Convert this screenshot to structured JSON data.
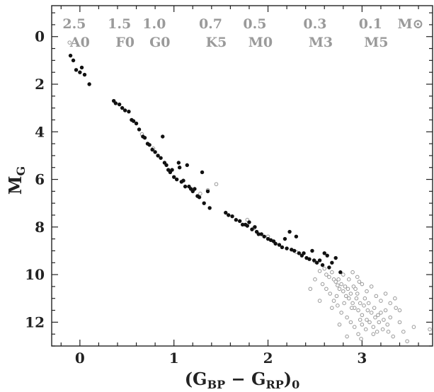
{
  "chart_data": {
    "type": "scatter",
    "xlabel": "(G_BP − G_RP)_0",
    "ylabel": "M_G",
    "xlim": [
      -0.3,
      3.75
    ],
    "ylim": [
      13.0,
      -1.3
    ],
    "x_ticks": [
      0,
      1,
      2,
      3
    ],
    "y_ticks": [
      0,
      2,
      4,
      6,
      8,
      10,
      12
    ],
    "grid": false,
    "mass_scale": {
      "unit": "M⊙",
      "markers": [
        {
          "x": -0.06,
          "mass": "2.5",
          "sptype": "A0"
        },
        {
          "x": 0.42,
          "mass": "1.5",
          "sptype": "F0"
        },
        {
          "x": 0.79,
          "mass": "1.0",
          "sptype": "G0"
        },
        {
          "x": 1.39,
          "mass": "0.7",
          "sptype": "K5"
        },
        {
          "x": 1.86,
          "mass": "0.5",
          "sptype": "M0"
        },
        {
          "x": 2.5,
          "mass": "0.3",
          "sptype": "M3"
        },
        {
          "x": 3.09,
          "mass": "0.1",
          "sptype": "M5"
        }
      ]
    },
    "series": [
      {
        "marker": "filled",
        "color": "#111111",
        "points": [
          [
            -0.1,
            0.8
          ],
          [
            -0.07,
            1.0
          ],
          [
            -0.04,
            1.4
          ],
          [
            0.0,
            1.5
          ],
          [
            0.02,
            1.3
          ],
          [
            0.05,
            1.6
          ],
          [
            0.1,
            2.0
          ],
          [
            0.36,
            2.7
          ],
          [
            0.38,
            2.8
          ],
          [
            0.42,
            2.85
          ],
          [
            0.45,
            3.0
          ],
          [
            0.48,
            3.1
          ],
          [
            0.52,
            3.15
          ],
          [
            0.55,
            3.5
          ],
          [
            0.57,
            3.55
          ],
          [
            0.6,
            3.65
          ],
          [
            0.63,
            3.9
          ],
          [
            0.67,
            4.2
          ],
          [
            0.69,
            4.25
          ],
          [
            0.72,
            4.5
          ],
          [
            0.74,
            4.55
          ],
          [
            0.77,
            4.75
          ],
          [
            0.8,
            4.85
          ],
          [
            0.83,
            5.0
          ],
          [
            0.86,
            5.1
          ],
          [
            0.88,
            4.2
          ],
          [
            0.9,
            5.3
          ],
          [
            0.92,
            5.4
          ],
          [
            0.94,
            5.6
          ],
          [
            0.96,
            5.7
          ],
          [
            0.98,
            5.6
          ],
          [
            1.0,
            5.9
          ],
          [
            1.03,
            6.0
          ],
          [
            1.05,
            5.3
          ],
          [
            1.06,
            5.5
          ],
          [
            1.08,
            6.1
          ],
          [
            1.1,
            6.05
          ],
          [
            1.12,
            6.3
          ],
          [
            1.14,
            5.4
          ],
          [
            1.16,
            6.3
          ],
          [
            1.18,
            6.4
          ],
          [
            1.2,
            6.5
          ],
          [
            1.22,
            6.4
          ],
          [
            1.25,
            6.7
          ],
          [
            1.27,
            6.75
          ],
          [
            1.3,
            5.7
          ],
          [
            1.32,
            7.0
          ],
          [
            1.36,
            6.5
          ],
          [
            1.38,
            7.2
          ],
          [
            1.55,
            7.4
          ],
          [
            1.58,
            7.5
          ],
          [
            1.62,
            7.55
          ],
          [
            1.66,
            7.7
          ],
          [
            1.7,
            7.75
          ],
          [
            1.73,
            7.9
          ],
          [
            1.76,
            7.9
          ],
          [
            1.78,
            7.95
          ],
          [
            1.8,
            7.8
          ],
          [
            1.83,
            8.1
          ],
          [
            1.86,
            8.0
          ],
          [
            1.88,
            8.2
          ],
          [
            1.9,
            8.3
          ],
          [
            1.93,
            8.3
          ],
          [
            1.96,
            8.4
          ],
          [
            2.0,
            8.5
          ],
          [
            2.03,
            8.55
          ],
          [
            2.06,
            8.6
          ],
          [
            2.08,
            8.7
          ],
          [
            2.12,
            8.75
          ],
          [
            2.15,
            8.85
          ],
          [
            2.18,
            8.5
          ],
          [
            2.2,
            8.9
          ],
          [
            2.23,
            8.2
          ],
          [
            2.25,
            8.95
          ],
          [
            2.28,
            9.0
          ],
          [
            2.3,
            8.4
          ],
          [
            2.33,
            9.1
          ],
          [
            2.36,
            9.2
          ],
          [
            2.38,
            9.1
          ],
          [
            2.41,
            9.3
          ],
          [
            2.44,
            9.35
          ],
          [
            2.47,
            9.0
          ],
          [
            2.49,
            9.4
          ],
          [
            2.52,
            9.5
          ],
          [
            2.55,
            9.4
          ],
          [
            2.58,
            9.6
          ],
          [
            2.6,
            9.1
          ],
          [
            2.63,
            9.2
          ],
          [
            2.65,
            9.7
          ],
          [
            2.68,
            9.5
          ],
          [
            2.72,
            9.3
          ],
          [
            2.77,
            9.9
          ]
        ]
      },
      {
        "marker": "open",
        "color": "#9a9a9a",
        "points": [
          [
            -0.11,
            0.25
          ],
          [
            0.66,
            4.1
          ],
          [
            0.78,
            4.7
          ],
          [
            1.36,
            6.45
          ],
          [
            1.28,
            6.6
          ],
          [
            1.45,
            6.2
          ],
          [
            1.78,
            7.7
          ],
          [
            1.85,
            8.05
          ],
          [
            2.0,
            8.4
          ],
          [
            2.3,
            9.05
          ],
          [
            2.5,
            9.45
          ],
          [
            2.55,
            9.85
          ],
          [
            2.6,
            9.75
          ],
          [
            2.62,
            10.0
          ],
          [
            2.65,
            10.1
          ],
          [
            2.68,
            9.9
          ],
          [
            2.7,
            10.2
          ],
          [
            2.72,
            10.3
          ],
          [
            2.74,
            10.45
          ],
          [
            2.75,
            10.2
          ],
          [
            2.76,
            10.6
          ],
          [
            2.78,
            10.4
          ],
          [
            2.8,
            10.7
          ],
          [
            2.82,
            10.5
          ],
          [
            2.83,
            10.9
          ],
          [
            2.85,
            10.6
          ],
          [
            2.86,
            11.0
          ],
          [
            2.88,
            10.8
          ],
          [
            2.9,
            11.2
          ],
          [
            2.91,
            10.5
          ],
          [
            2.92,
            11.4
          ],
          [
            2.94,
            11.0
          ],
          [
            2.95,
            10.8
          ],
          [
            2.96,
            11.5
          ],
          [
            2.98,
            11.2
          ],
          [
            3.0,
            11.7
          ],
          [
            3.02,
            11.3
          ],
          [
            3.03,
            11.0
          ],
          [
            3.05,
            11.9
          ],
          [
            3.06,
            11.5
          ],
          [
            3.08,
            12.0
          ],
          [
            3.1,
            11.6
          ],
          [
            3.12,
            12.2
          ],
          [
            3.14,
            11.8
          ],
          [
            3.16,
            12.4
          ],
          [
            3.18,
            12.0
          ],
          [
            3.2,
            11.6
          ],
          [
            3.22,
            12.3
          ],
          [
            3.25,
            11.5
          ],
          [
            3.27,
            12.1
          ],
          [
            3.3,
            11.8
          ],
          [
            3.33,
            12.6
          ],
          [
            3.36,
            11.4
          ],
          [
            3.4,
            12.0
          ],
          [
            3.44,
            12.4
          ],
          [
            3.48,
            12.8
          ],
          [
            3.55,
            12.2
          ],
          [
            3.72,
            12.3
          ],
          [
            2.58,
            10.4
          ],
          [
            2.66,
            10.8
          ],
          [
            2.7,
            11.1
          ],
          [
            2.74,
            11.3
          ],
          [
            2.78,
            11.6
          ],
          [
            2.84,
            11.8
          ],
          [
            2.88,
            12.0
          ],
          [
            2.92,
            12.2
          ],
          [
            2.96,
            12.5
          ],
          [
            3.0,
            12.1
          ],
          [
            2.8,
            10.0
          ],
          [
            2.86,
            10.2
          ],
          [
            2.9,
            9.9
          ],
          [
            2.95,
            10.1
          ],
          [
            3.0,
            10.4
          ],
          [
            3.05,
            10.7
          ],
          [
            3.1,
            10.5
          ],
          [
            3.15,
            10.9
          ],
          [
            3.2,
            11.1
          ],
          [
            3.25,
            10.8
          ],
          [
            3.3,
            11.2
          ],
          [
            2.62,
            10.6
          ],
          [
            2.68,
            11.4
          ],
          [
            2.76,
            12.1
          ],
          [
            2.84,
            12.6
          ],
          [
            2.5,
            10.2
          ],
          [
            2.45,
            10.6
          ],
          [
            2.55,
            11.1
          ],
          [
            3.35,
            11.0
          ],
          [
            3.4,
            11.5
          ],
          [
            2.98,
            11.9
          ],
          [
            3.12,
            12.5
          ],
          [
            3.04,
            12.3
          ],
          [
            2.93,
            10.6
          ],
          [
            2.97,
            10.3
          ],
          [
            3.07,
            11.2
          ],
          [
            3.13,
            11.4
          ],
          [
            3.17,
            11.7
          ],
          [
            3.23,
            11.9
          ],
          [
            2.89,
            11.4
          ],
          [
            2.81,
            11.2
          ],
          [
            2.73,
            10.9
          ],
          [
            2.99,
            12.7
          ],
          [
            3.28,
            12.4
          ]
        ]
      }
    ]
  }
}
